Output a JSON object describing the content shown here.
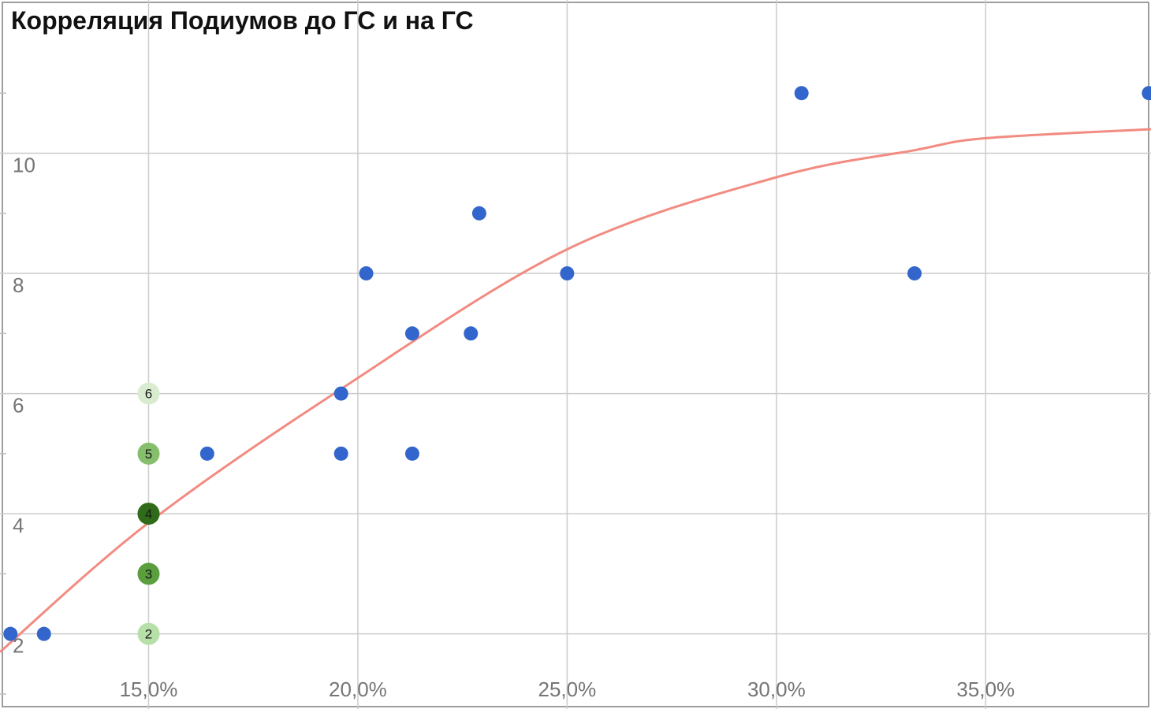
{
  "chart_data": {
    "type": "scatter",
    "title": "Корреляция Подиумов до ГС и на ГС",
    "xlabel": "",
    "ylabel": "",
    "xlim": [
      0.1145,
      0.3895
    ],
    "ylim": [
      0.75,
      12.55
    ],
    "x_ticks": [
      {
        "value": 0.15,
        "label": "15,0%"
      },
      {
        "value": 0.2,
        "label": "20,0%"
      },
      {
        "value": 0.25,
        "label": "25,0%"
      },
      {
        "value": 0.3,
        "label": "30,0%"
      },
      {
        "value": 0.35,
        "label": "35,0%"
      }
    ],
    "y_ticks": [
      {
        "value": 2,
        "label": "2"
      },
      {
        "value": 4,
        "label": "4"
      },
      {
        "value": 6,
        "label": "6"
      },
      {
        "value": 8,
        "label": "8"
      },
      {
        "value": 10,
        "label": "10"
      }
    ],
    "minor_y_ticks": [
      1,
      3,
      5,
      7,
      9,
      11
    ],
    "grid": true,
    "legend": "none",
    "series": [
      {
        "color": "#3366cc",
        "points": [
          {
            "x": 0.117,
            "y": 2
          },
          {
            "x": 0.125,
            "y": 2
          },
          {
            "x": 0.164,
            "y": 5
          },
          {
            "x": 0.196,
            "y": 5
          },
          {
            "x": 0.196,
            "y": 6
          },
          {
            "x": 0.202,
            "y": 8
          },
          {
            "x": 0.213,
            "y": 5
          },
          {
            "x": 0.213,
            "y": 7
          },
          {
            "x": 0.227,
            "y": 7
          },
          {
            "x": 0.229,
            "y": 9
          },
          {
            "x": 0.25,
            "y": 8
          },
          {
            "x": 0.306,
            "y": 11
          },
          {
            "x": 0.333,
            "y": 8
          },
          {
            "x": 0.389,
            "y": 11
          }
        ]
      },
      {
        "points": [
          {
            "x": 0.15,
            "y": 2,
            "label": "2",
            "color": "#b7dfa8"
          },
          {
            "x": 0.15,
            "y": 3,
            "label": "3",
            "color": "#5a9e3e"
          },
          {
            "x": 0.15,
            "y": 4,
            "label": "4",
            "color": "#2f6b18"
          },
          {
            "x": 0.15,
            "y": 5,
            "label": "5",
            "color": "#86bf6c"
          },
          {
            "x": 0.15,
            "y": 6,
            "label": "6",
            "color": "#d9ecd0"
          }
        ]
      }
    ],
    "trendline": {
      "type": "polynomial",
      "color": "#f28b82",
      "points": [
        {
          "x": 0.1145,
          "y": 1.7
        },
        {
          "x": 0.15,
          "y": 3.85
        },
        {
          "x": 0.1965,
          "y": 6.1
        },
        {
          "x": 0.25,
          "y": 8.4
        },
        {
          "x": 0.3,
          "y": 9.6
        },
        {
          "x": 0.333,
          "y": 10.05
        },
        {
          "x": 0.35,
          "y": 10.25
        },
        {
          "x": 0.3895,
          "y": 10.4
        }
      ]
    }
  }
}
